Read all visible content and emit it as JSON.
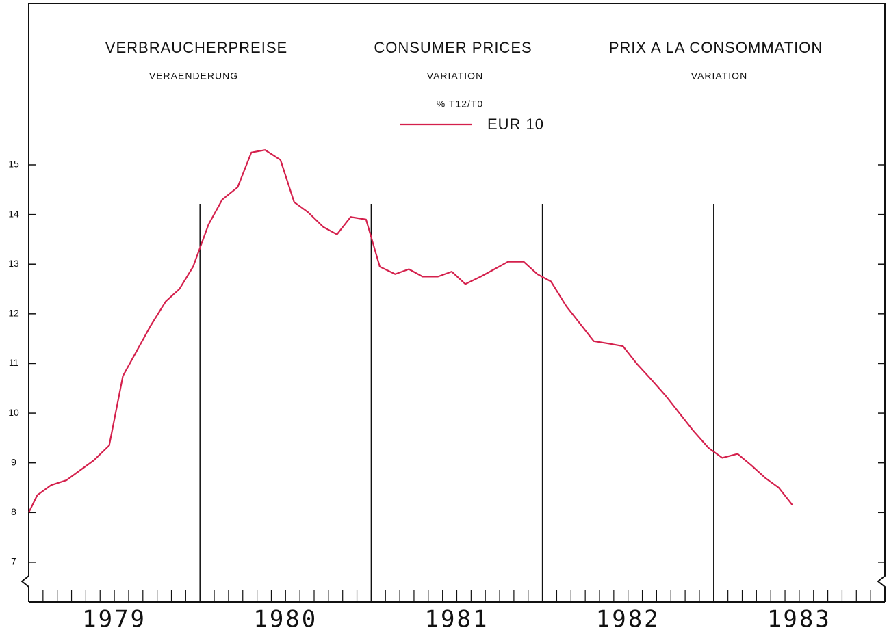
{
  "chart_data": {
    "type": "line",
    "titles": [
      "VERBRAUCHERPREISE",
      "CONSUMER PRICES",
      "PRIX A LA CONSOMMATION"
    ],
    "subtitles": [
      "VERAENDERUNG",
      "VARIATION",
      "VARIATION"
    ],
    "unit_label": "% T12/T0",
    "x": [
      1979.0,
      1979.05,
      1979.13,
      1979.22,
      1979.3,
      1979.38,
      1979.47,
      1979.55,
      1979.63,
      1979.71,
      1979.8,
      1979.88,
      1979.96,
      1980.05,
      1980.13,
      1980.22,
      1980.3,
      1980.38,
      1980.47,
      1980.55,
      1980.63,
      1980.72,
      1980.8,
      1980.88,
      1980.97,
      1981.05,
      1981.14,
      1981.22,
      1981.3,
      1981.39,
      1981.47,
      1981.55,
      1981.64,
      1981.72,
      1981.8,
      1981.89,
      1981.97,
      1982.05,
      1982.14,
      1982.22,
      1982.3,
      1982.39,
      1982.47,
      1982.55,
      1982.63,
      1982.72,
      1982.8,
      1982.88,
      1982.97,
      1983.05,
      1983.14,
      1983.22,
      1983.3,
      1983.38,
      1983.46
    ],
    "series": [
      {
        "name": "EUR 10",
        "color": "#d4204c",
        "values": [
          8.0,
          8.35,
          8.55,
          8.65,
          8.85,
          9.05,
          9.35,
          10.75,
          11.25,
          11.75,
          12.25,
          12.5,
          12.95,
          13.8,
          14.3,
          14.55,
          15.25,
          15.3,
          15.1,
          14.25,
          14.05,
          13.75,
          13.6,
          13.95,
          13.9,
          12.95,
          12.8,
          12.9,
          12.75,
          12.75,
          12.85,
          12.6,
          12.75,
          12.9,
          13.05,
          13.05,
          12.8,
          12.65,
          12.15,
          11.8,
          11.45,
          11.4,
          11.35,
          11.0,
          10.7,
          10.35,
          10.0,
          9.65,
          9.3,
          9.1,
          9.18,
          8.95,
          8.7,
          8.5,
          8.15
        ]
      }
    ],
    "xlim": [
      1979,
      1984
    ],
    "xticks": [
      {
        "value": 1979.5,
        "label": "1979"
      },
      {
        "value": 1980.5,
        "label": "1980"
      },
      {
        "value": 1981.5,
        "label": "1981"
      },
      {
        "value": 1982.5,
        "label": "1982"
      },
      {
        "value": 1983.5,
        "label": "1983"
      }
    ],
    "ylim": [
      6.2,
      18.25
    ],
    "yticks": [
      7,
      8,
      9,
      10,
      11,
      12,
      13,
      14,
      15
    ]
  }
}
